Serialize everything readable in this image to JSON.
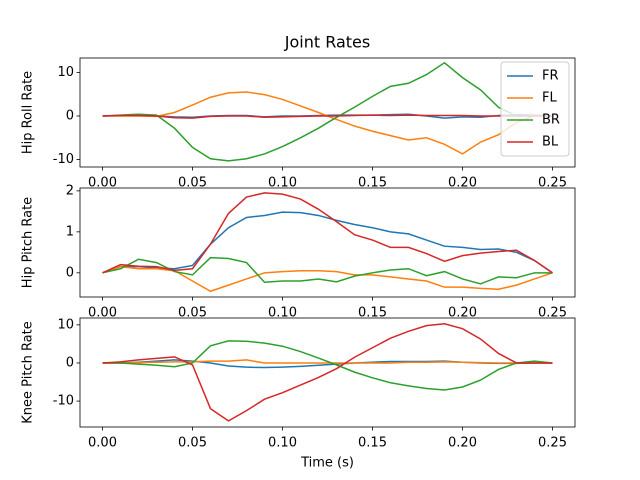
{
  "chart_data": [
    {
      "type": "line",
      "title": "Joint Rates",
      "ylabel": "Hip Roll Rate",
      "legend": "upper right",
      "x": [
        0,
        0.01,
        0.02,
        0.03,
        0.04,
        0.05,
        0.06,
        0.07,
        0.08,
        0.09,
        0.1,
        0.11,
        0.12,
        0.13,
        0.14,
        0.15,
        0.16,
        0.17,
        0.18,
        0.19,
        0.2,
        0.21,
        0.22,
        0.23,
        0.24,
        0.25
      ],
      "xlim": [
        -0.0125,
        0.2625
      ],
      "xticks": [
        {
          "value": 0,
          "label": "0.00"
        },
        0.05,
        {
          "value": 0.1,
          "label": "0.10"
        },
        0.15,
        {
          "value": 0.2,
          "label": "0.20"
        },
        0.25
      ],
      "ylim": [
        -11.7,
        13.3
      ],
      "yticks": [
        -10,
        0,
        10
      ],
      "series": [
        {
          "name": "FR",
          "color": "#1f77b4",
          "values": [
            0,
            0.1,
            0.1,
            0,
            -0.2,
            -0.3,
            0,
            0.1,
            0.1,
            -0.2,
            0,
            0,
            0.1,
            0.2,
            0.2,
            0.2,
            0.3,
            0.4,
            0,
            -0.5,
            -0.2,
            -0.3,
            0.1,
            0.3,
            0.2,
            0.1
          ]
        },
        {
          "name": "FL",
          "color": "#ff7f0e",
          "values": [
            0,
            0,
            0,
            -0.1,
            0.8,
            2.5,
            4.3,
            5.3,
            5.5,
            4.9,
            3.8,
            2.3,
            0.8,
            -0.8,
            -2.3,
            -3.5,
            -4.5,
            -5.5,
            -5,
            -6.5,
            -8.7,
            -6,
            -4.3,
            -1.5,
            0.1,
            0
          ]
        },
        {
          "name": "BR",
          "color": "#2ca02c",
          "values": [
            0,
            0.2,
            0.4,
            0.2,
            -2.8,
            -7.2,
            -9.8,
            -10.3,
            -9.8,
            -8.7,
            -7,
            -5,
            -2.8,
            -0.3,
            2,
            4.5,
            6.8,
            7.5,
            9.5,
            12.2,
            8.8,
            6,
            2,
            0,
            0,
            0
          ]
        },
        {
          "name": "BL",
          "color": "#d62728",
          "values": [
            0,
            0.1,
            0.1,
            0,
            -0.4,
            -0.5,
            -0.1,
            0,
            0,
            -0.3,
            -0.2,
            -0.1,
            0,
            0,
            0.1,
            0.2,
            0.1,
            0.2,
            0.1,
            0.1,
            0.1,
            0,
            0,
            0,
            0,
            0
          ]
        }
      ]
    },
    {
      "type": "line",
      "ylabel": "Hip Pitch Rate",
      "x": [
        0,
        0.01,
        0.02,
        0.03,
        0.04,
        0.05,
        0.06,
        0.07,
        0.08,
        0.09,
        0.1,
        0.11,
        0.12,
        0.13,
        0.14,
        0.15,
        0.16,
        0.17,
        0.18,
        0.19,
        0.2,
        0.21,
        0.22,
        0.23,
        0.24,
        0.25
      ],
      "xlim": [
        -0.0125,
        0.2625
      ],
      "xticks": [
        {
          "value": 0,
          "label": "0.00"
        },
        0.05,
        {
          "value": 0.1,
          "label": "0.10"
        },
        0.15,
        {
          "value": 0.2,
          "label": "0.20"
        },
        0.25
      ],
      "ylim": [
        -0.59,
        2.07
      ],
      "yticks": [
        0,
        1,
        2
      ],
      "series": [
        {
          "color": "#1f77b4",
          "values": [
            0,
            0.15,
            0.15,
            0.12,
            0.1,
            0.18,
            0.7,
            1.1,
            1.35,
            1.4,
            1.48,
            1.47,
            1.4,
            1.28,
            1.18,
            1.1,
            1.0,
            0.95,
            0.8,
            0.65,
            0.62,
            0.57,
            0.58,
            0.5,
            0.3,
            0
          ]
        },
        {
          "color": "#ff7f0e",
          "values": [
            0,
            0.15,
            0.1,
            0.1,
            0.05,
            -0.2,
            -0.45,
            -0.3,
            -0.15,
            0,
            0.03,
            0.05,
            0.05,
            0.03,
            -0.05,
            -0.05,
            -0.1,
            -0.15,
            -0.2,
            -0.35,
            -0.35,
            -0.38,
            -0.4,
            -0.3,
            -0.15,
            0
          ]
        },
        {
          "color": "#2ca02c",
          "values": [
            0,
            0.1,
            0.33,
            0.25,
            0.03,
            -0.05,
            0.37,
            0.35,
            0.25,
            -0.23,
            -0.2,
            -0.2,
            -0.15,
            -0.22,
            -0.08,
            0,
            0.07,
            0.1,
            -0.07,
            0.03,
            -0.15,
            -0.27,
            -0.1,
            -0.12,
            0,
            0
          ]
        },
        {
          "color": "#d62728",
          "values": [
            0,
            0.2,
            0.16,
            0.15,
            0.06,
            0.1,
            0.7,
            1.45,
            1.85,
            1.95,
            1.92,
            1.8,
            1.55,
            1.25,
            0.93,
            0.8,
            0.62,
            0.62,
            0.47,
            0.28,
            0.42,
            0.48,
            0.52,
            0.55,
            0.3,
            0
          ]
        }
      ]
    },
    {
      "type": "line",
      "ylabel": "Knee Pitch Rate",
      "xlabel": "Time (s)",
      "x": [
        0,
        0.01,
        0.02,
        0.03,
        0.04,
        0.05,
        0.06,
        0.07,
        0.08,
        0.09,
        0.1,
        0.11,
        0.12,
        0.13,
        0.14,
        0.15,
        0.16,
        0.17,
        0.18,
        0.19,
        0.2,
        0.21,
        0.22,
        0.23,
        0.24,
        0.25
      ],
      "xlim": [
        -0.0125,
        0.2625
      ],
      "xticks": [
        {
          "value": 0,
          "label": "0.00"
        },
        0.05,
        {
          "value": 0.1,
          "label": "0.10"
        },
        0.15,
        {
          "value": 0.2,
          "label": "0.20"
        },
        0.25
      ],
      "ylim": [
        -16.8,
        11.8
      ],
      "yticks": [
        -10,
        0,
        10
      ],
      "series": [
        {
          "color": "#1f77b4",
          "values": [
            0,
            0,
            0.2,
            0.5,
            0.8,
            0.5,
            0,
            -0.8,
            -1.1,
            -1.2,
            -1.1,
            -0.9,
            -0.6,
            -0.3,
            0,
            0.2,
            0.4,
            0.4,
            0.4,
            0.5,
            0.2,
            0,
            -0.1,
            -0.1,
            0,
            0
          ]
        },
        {
          "color": "#ff7f0e",
          "values": [
            0,
            0,
            0.1,
            0.2,
            0.3,
            0.3,
            0.5,
            0.5,
            0.8,
            0,
            0,
            0,
            0,
            0,
            0,
            0,
            0,
            0.2,
            0.2,
            0.3,
            0.2,
            0.1,
            0,
            0,
            0,
            0
          ]
        },
        {
          "color": "#2ca02c",
          "values": [
            0,
            0,
            -0.3,
            -0.6,
            -1,
            0,
            4.5,
            5.8,
            5.7,
            5.2,
            4.4,
            3,
            1.3,
            -0.5,
            -2.4,
            -3.9,
            -5.2,
            -6,
            -6.7,
            -7.1,
            -6.3,
            -4.5,
            -1.7,
            0,
            0.5,
            0
          ]
        },
        {
          "color": "#d62728",
          "values": [
            0,
            0.3,
            0.8,
            1.2,
            1.6,
            -0.5,
            -12,
            -15.2,
            -12.5,
            -9.5,
            -7.8,
            -5.8,
            -3.8,
            -1.5,
            1.5,
            4,
            6.5,
            8.3,
            9.8,
            10.3,
            9,
            6.3,
            2.5,
            0,
            0,
            0
          ]
        }
      ]
    }
  ]
}
